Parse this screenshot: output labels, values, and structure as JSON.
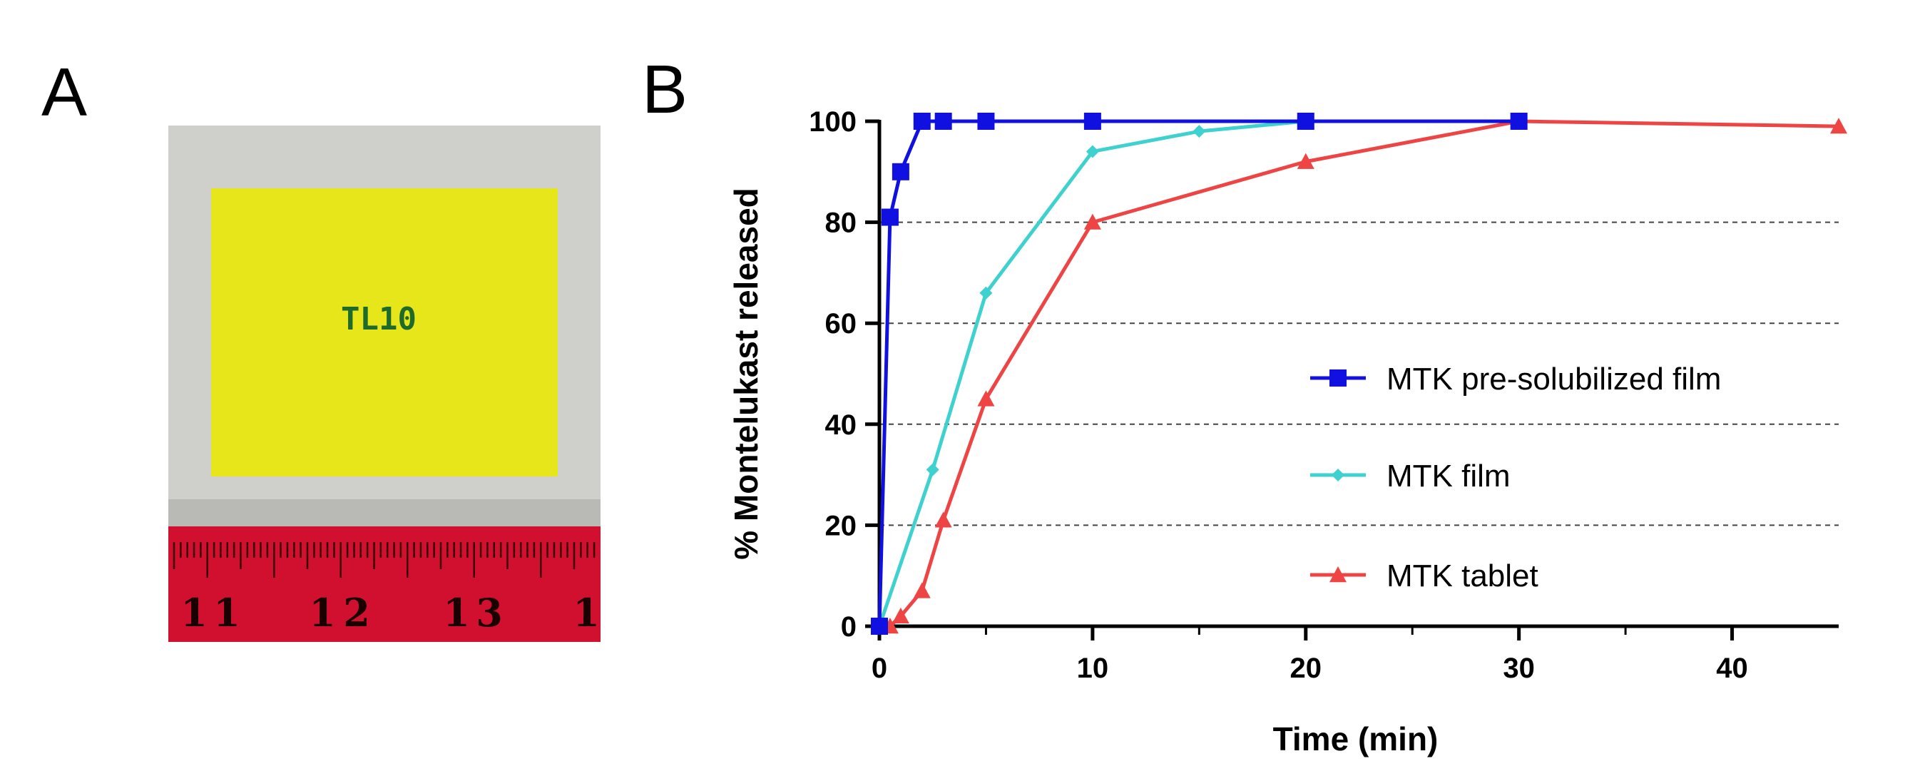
{
  "panels": {
    "a_label": "A",
    "b_label": "B"
  },
  "photo": {
    "sample_label": "TL10",
    "ruler_numbers": [
      "1",
      "1",
      "1",
      "2",
      "1",
      "3",
      "1"
    ],
    "colors": {
      "background": "#cfd0cc",
      "film": "#e6e61a",
      "ruler": "#d0102e",
      "label": "#1d6a2a"
    }
  },
  "chart_data": {
    "type": "line",
    "title": "",
    "xlabel": "Time (min)",
    "ylabel": "% Montelukast released",
    "xlim": [
      0,
      45
    ],
    "ylim": [
      0,
      100
    ],
    "x_ticks": [
      0,
      10,
      20,
      30,
      40
    ],
    "y_ticks": [
      0,
      20,
      40,
      60,
      80,
      100
    ],
    "grid": "horizontal dashed at 20, 40, 60, 80",
    "legend_position": "right",
    "series": [
      {
        "name": "MTK pre-solubilized film",
        "color": "#1010e0",
        "marker": "square",
        "x": [
          0,
          0.5,
          1,
          2,
          3,
          5,
          10,
          20,
          30
        ],
        "y": [
          0,
          81,
          90,
          100,
          100,
          100,
          100,
          100,
          100
        ]
      },
      {
        "name": "MTK film",
        "color": "#3fd0d0",
        "marker": "diamond",
        "x": [
          0,
          2.5,
          5,
          10,
          15,
          20,
          30
        ],
        "y": [
          0,
          31,
          66,
          94,
          98,
          100,
          100
        ]
      },
      {
        "name": "MTK tablet",
        "color": "#ee4444",
        "marker": "triangle",
        "x": [
          0.5,
          1,
          2,
          3,
          5,
          10,
          20,
          30,
          45
        ],
        "y": [
          0,
          2,
          7,
          21,
          45,
          80,
          92,
          100,
          99
        ]
      }
    ]
  }
}
